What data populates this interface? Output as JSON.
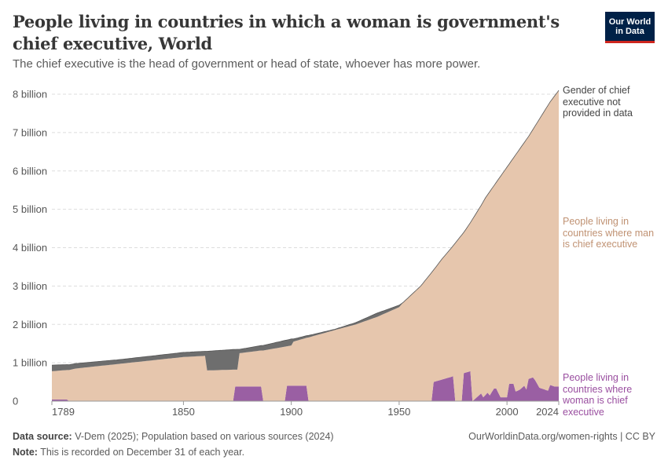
{
  "header": {
    "title": "People living in countries in which a woman is government's chief executive, World",
    "subtitle": "The chief executive is the head of government or head of state, whoever has more power.",
    "logo_text": "Our World in Data"
  },
  "footer": {
    "source_label": "Data source:",
    "source_text": " V-Dem (2025); Population based on various sources (2024)",
    "note_label": "Note:",
    "note_text": " This is recorded on December 31 of each year.",
    "url": "OurWorldinData.org/women-rights | CC BY"
  },
  "chart_data": {
    "type": "area",
    "stacked": true,
    "title": "People living in countries in which a woman is government's chief executive, World",
    "xlim": [
      1789,
      2024
    ],
    "ylim": [
      0,
      8000000000
    ],
    "y_unit": "billion",
    "grid": "horizontal dashed",
    "legend": "right, inline labels",
    "x_ticks": [
      {
        "value": 1789,
        "label": "1789"
      },
      {
        "value": 1850,
        "label": "1850"
      },
      {
        "value": 1900,
        "label": "1900"
      },
      {
        "value": 1950,
        "label": "1950"
      },
      {
        "value": 2000,
        "label": "2000"
      },
      {
        "value": 2024,
        "label": "2024"
      }
    ],
    "y_ticks": [
      {
        "value": 0,
        "label": "0"
      },
      {
        "value": 1,
        "label": "1 billion"
      },
      {
        "value": 2,
        "label": "2 billion"
      },
      {
        "value": 3,
        "label": "3 billion"
      },
      {
        "value": 4,
        "label": "4 billion"
      },
      {
        "value": 5,
        "label": "5 billion"
      },
      {
        "value": 6,
        "label": "6 billion"
      },
      {
        "value": 7,
        "label": "7 billion"
      },
      {
        "value": 8,
        "label": "8 billion"
      }
    ],
    "series": [
      {
        "key": "woman",
        "name": "People living in countries where woman is chief executive",
        "color": "#9a5fa3",
        "label_color": "#9a4fa0",
        "points": [
          [
            1789,
            0.04
          ],
          [
            1796,
            0.04
          ],
          [
            1797,
            0
          ],
          [
            1873,
            0
          ],
          [
            1874,
            0.38
          ],
          [
            1886,
            0.38
          ],
          [
            1887,
            0
          ],
          [
            1897,
            0
          ],
          [
            1898,
            0.4
          ],
          [
            1907,
            0.4
          ],
          [
            1908,
            0
          ],
          [
            1965,
            0
          ],
          [
            1966,
            0.5
          ],
          [
            1974,
            0.63
          ],
          [
            1975,
            0.65
          ],
          [
            1976,
            0
          ],
          [
            1979,
            0
          ],
          [
            1980,
            0.73
          ],
          [
            1983,
            0.78
          ],
          [
            1984,
            0
          ],
          [
            1985,
            0.05
          ],
          [
            1986,
            0.1
          ],
          [
            1988,
            0.2
          ],
          [
            1989,
            0.1
          ],
          [
            1991,
            0.22
          ],
          [
            1992,
            0.15
          ],
          [
            1994,
            0.33
          ],
          [
            1995,
            0.33
          ],
          [
            1997,
            0.1
          ],
          [
            2000,
            0.1
          ],
          [
            2001,
            0.45
          ],
          [
            2003,
            0.45
          ],
          [
            2004,
            0.25
          ],
          [
            2006,
            0.3
          ],
          [
            2008,
            0.4
          ],
          [
            2009,
            0.3
          ],
          [
            2010,
            0.58
          ],
          [
            2012,
            0.62
          ],
          [
            2013,
            0.55
          ],
          [
            2015,
            0.35
          ],
          [
            2019,
            0.27
          ],
          [
            2020,
            0.42
          ],
          [
            2022,
            0.38
          ],
          [
            2024,
            0.38
          ]
        ]
      },
      {
        "key": "man",
        "name": "People living in countries where man is chief executive",
        "color": "#e6c6ad",
        "label_color": "#c09273",
        "points": [
          [
            1789,
            0.74
          ],
          [
            1796,
            0.77
          ],
          [
            1797,
            0.81
          ],
          [
            1800,
            0.85
          ],
          [
            1820,
            0.97
          ],
          [
            1850,
            1.15
          ],
          [
            1860,
            1.18
          ],
          [
            1861,
            0.8
          ],
          [
            1873,
            0.82
          ],
          [
            1874,
            0.44
          ],
          [
            1875,
            0.44
          ],
          [
            1876,
            0.87
          ],
          [
            1886,
            0.94
          ],
          [
            1887,
            1.32
          ],
          [
            1897,
            1.42
          ],
          [
            1898,
            1.03
          ],
          [
            1900,
            1.05
          ],
          [
            1901,
            1.15
          ],
          [
            1907,
            1.25
          ],
          [
            1908,
            1.66
          ],
          [
            1920,
            1.85
          ],
          [
            1930,
            2.0
          ],
          [
            1940,
            2.2
          ],
          [
            1950,
            2.45
          ],
          [
            1952,
            2.58
          ],
          [
            1960,
            3.0
          ],
          [
            1965,
            3.35
          ],
          [
            1966,
            2.92
          ],
          [
            1970,
            3.15
          ],
          [
            1974,
            3.35
          ],
          [
            1975,
            3.4
          ],
          [
            1976,
            4.12
          ],
          [
            1979,
            4.33
          ],
          [
            1980,
            3.67
          ],
          [
            1983,
            3.87
          ],
          [
            1984,
            4.74
          ],
          [
            1985,
            4.78
          ],
          [
            1986,
            4.82
          ],
          [
            1988,
            4.9
          ],
          [
            1989,
            5.1
          ],
          [
            1990,
            5.14
          ],
          [
            1991,
            5.16
          ],
          [
            1992,
            5.31
          ],
          [
            1994,
            5.29
          ],
          [
            1995,
            5.37
          ],
          [
            1997,
            5.76
          ],
          [
            2000,
            6.0
          ],
          [
            2001,
            5.73
          ],
          [
            2003,
            5.89
          ],
          [
            2004,
            6.17
          ],
          [
            2006,
            6.28
          ],
          [
            2008,
            6.34
          ],
          [
            2009,
            6.52
          ],
          [
            2010,
            6.32
          ],
          [
            2012,
            6.46
          ],
          [
            2013,
            6.62
          ],
          [
            2015,
            7.0
          ],
          [
            2019,
            7.44
          ],
          [
            2020,
            7.38
          ],
          [
            2022,
            7.57
          ],
          [
            2024,
            7.72
          ]
        ]
      },
      {
        "key": "not_provided",
        "name": "Gender of chief executive not provided in data",
        "color": "#6e6e6e",
        "label_color": "#444444",
        "points": [
          [
            1789,
            0.16
          ],
          [
            1800,
            0.13
          ],
          [
            1820,
            0.11
          ],
          [
            1850,
            0.12
          ],
          [
            1860,
            0.12
          ],
          [
            1861,
            0.5
          ],
          [
            1875,
            0.53
          ],
          [
            1876,
            0.1
          ],
          [
            1900,
            0.17
          ],
          [
            1901,
            0.07
          ],
          [
            1920,
            0.02
          ],
          [
            1930,
            0.05
          ],
          [
            1940,
            0.1
          ],
          [
            1950,
            0.05
          ],
          [
            1952,
            0
          ],
          [
            2024,
            0
          ]
        ]
      }
    ]
  }
}
